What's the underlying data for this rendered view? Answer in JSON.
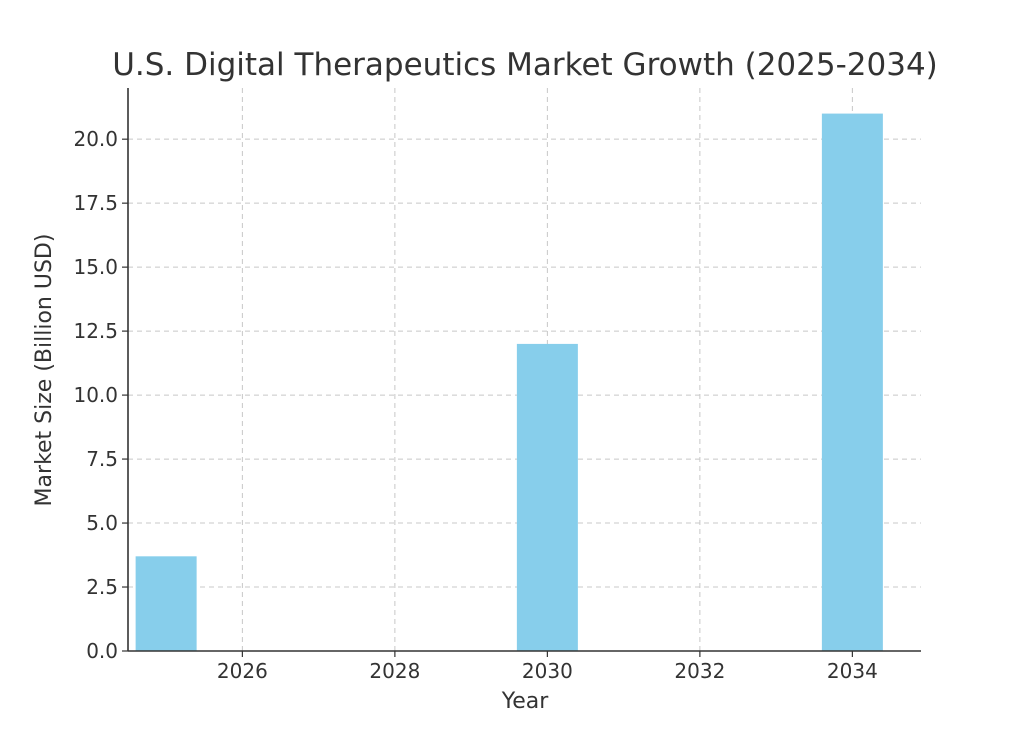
{
  "chart_data": {
    "type": "bar",
    "title": "U.S. Digital Therapeutics Market Growth (2025-2034)",
    "xlabel": "Year",
    "ylabel": "Market Size (Billion USD)",
    "x": [
      2025,
      2030,
      2034
    ],
    "values": [
      3.7,
      12.0,
      21.0
    ],
    "bar_width_years": 0.8,
    "xlim": [
      2024.5,
      2034.9
    ],
    "ylim": [
      0,
      22
    ],
    "xticks": [
      2026,
      2028,
      2030,
      2032,
      2034
    ],
    "xtick_labels": [
      "2026",
      "2028",
      "2030",
      "2032",
      "2034"
    ],
    "yticks": [
      0,
      2.5,
      5,
      7.5,
      10,
      12.5,
      15,
      17.5,
      20
    ],
    "ytick_labels": [
      "0.0",
      "2.5",
      "5.0",
      "7.5",
      "10.0",
      "12.5",
      "15.0",
      "17.5",
      "20.0"
    ],
    "grid": true,
    "legend": "none",
    "bar_color": "#87CEEB"
  }
}
